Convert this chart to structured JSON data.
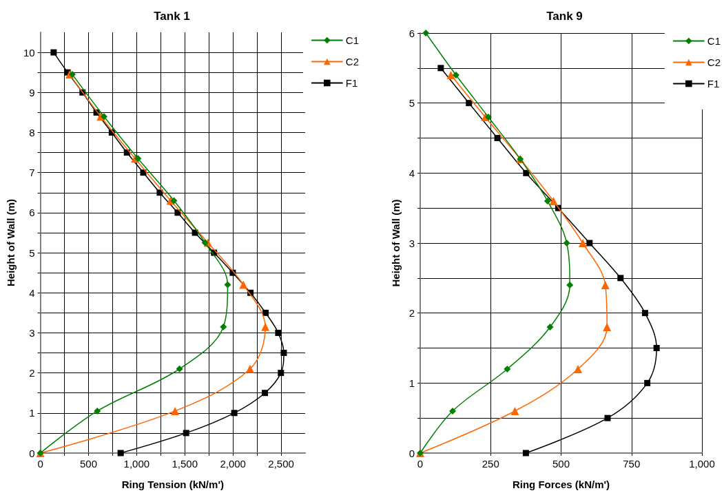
{
  "chart_data": [
    {
      "type": "line",
      "title": "Tank 1",
      "xlabel": "Ring Tension (kN/m')",
      "ylabel": "Height of Wall (m)",
      "xlim": [
        0,
        2750
      ],
      "ylim": [
        0,
        10.5
      ],
      "xticks": [
        0,
        {
          "value": 250,
          "label": null
        },
        500,
        {
          "value": 750,
          "label": null
        },
        {
          "value": 1000,
          "label": "1,000"
        },
        {
          "value": 1250,
          "label": null
        },
        {
          "value": 1500,
          "label": "1,500"
        },
        {
          "value": 1750,
          "label": null
        },
        {
          "value": 2000,
          "label": "2,000"
        },
        {
          "value": 2250,
          "label": null
        },
        {
          "value": 2500,
          "label": "2,500"
        }
      ],
      "yticks": [
        0,
        {
          "value": 0.5,
          "label": null
        },
        1,
        {
          "value": 1.5,
          "label": null
        },
        2,
        {
          "value": 2.5,
          "label": null
        },
        3,
        {
          "value": 3.5,
          "label": null
        },
        4,
        {
          "value": 4.5,
          "label": null
        },
        5,
        {
          "value": 5.5,
          "label": null
        },
        6,
        {
          "value": 6.5,
          "label": null
        },
        7,
        {
          "value": 7.5,
          "label": null
        },
        8,
        {
          "value": 8.5,
          "label": null
        },
        9,
        {
          "value": 9.5,
          "label": null
        },
        10
      ],
      "grid": true,
      "legend": "top right",
      "line_style": "solid",
      "series": [
        {
          "name": "C1",
          "color": "#008000",
          "marker": "diamond",
          "x": [
            0,
            592,
            1445,
            1901,
            1945,
            1710,
            1387,
            1014,
            661,
            332
          ],
          "values": [
            0,
            1.05,
            2.1,
            3.15,
            4.2,
            5.25,
            6.3,
            7.35,
            8.4,
            9.45
          ]
        },
        {
          "name": "C2",
          "color": "#ff6600",
          "marker": "triangle",
          "x": [
            0,
            1399,
            2177,
            2336,
            2108,
            1740,
            1353,
            984,
            627,
            304
          ],
          "values": [
            0,
            1.05,
            2.1,
            3.15,
            4.2,
            5.25,
            6.3,
            7.35,
            8.4,
            9.45
          ]
        },
        {
          "name": "F1",
          "color": "#000000",
          "marker": "square",
          "x": [
            834,
            1514,
            2014,
            2332,
            2498,
            2528,
            2470,
            2339,
            2182,
            1998,
            1804,
            1606,
            1426,
            1240,
            1069,
            899,
            742,
            583,
            438,
            283,
            138
          ],
          "values": [
            0,
            0.5,
            1,
            1.5,
            2,
            2.5,
            3,
            3.5,
            4,
            4.5,
            5,
            5.5,
            6,
            6.5,
            7,
            7.5,
            8,
            8.5,
            9,
            9.5,
            10
          ]
        }
      ]
    },
    {
      "type": "line",
      "title": "Tank 9",
      "xlabel": "Ring Forces (kN/m')",
      "ylabel": "Height of Wall (m)",
      "xlim": [
        0,
        1000
      ],
      "ylim": [
        0,
        6
      ],
      "xticks": [
        0,
        250,
        500,
        750,
        {
          "value": 1000,
          "label": "1,000"
        }
      ],
      "yticks": [
        0,
        {
          "value": 0.5,
          "label": null
        },
        1,
        {
          "value": 1.5,
          "label": null
        },
        2,
        {
          "value": 2.5,
          "label": null
        },
        3,
        {
          "value": 3.5,
          "label": null
        },
        4,
        {
          "value": 4.5,
          "label": null
        },
        5,
        {
          "value": 5.5,
          "label": null
        },
        6
      ],
      "grid": true,
      "legend": "top right",
      "line_style": "solid",
      "series": [
        {
          "name": "C1",
          "color": "#008000",
          "marker": "diamond",
          "x": [
            0,
            115,
            309,
            461,
            531,
            520,
            452,
            355,
            242,
            127,
            20
          ],
          "values": [
            0,
            0.6,
            1.2,
            1.8,
            2.4,
            3.0,
            3.6,
            4.2,
            4.8,
            5.4,
            6.0
          ]
        },
        {
          "name": "C2",
          "color": "#ff6600",
          "marker": "triangle",
          "x": [
            0,
            336,
            560,
            663,
            657,
            577,
            473,
            355,
            231,
            109
          ],
          "values": [
            0,
            0.6,
            1.2,
            1.8,
            2.4,
            3.0,
            3.6,
            4.2,
            4.8,
            5.4
          ]
        },
        {
          "name": "F1",
          "color": "#000000",
          "marker": "square",
          "x": [
            375,
            665,
            806,
            839,
            798,
            711,
            601,
            490,
            376,
            274,
            173,
            73
          ],
          "values": [
            0,
            0.5,
            1,
            1.5,
            2,
            2.5,
            3,
            3.5,
            4,
            4.5,
            5,
            5.5
          ]
        }
      ]
    }
  ]
}
